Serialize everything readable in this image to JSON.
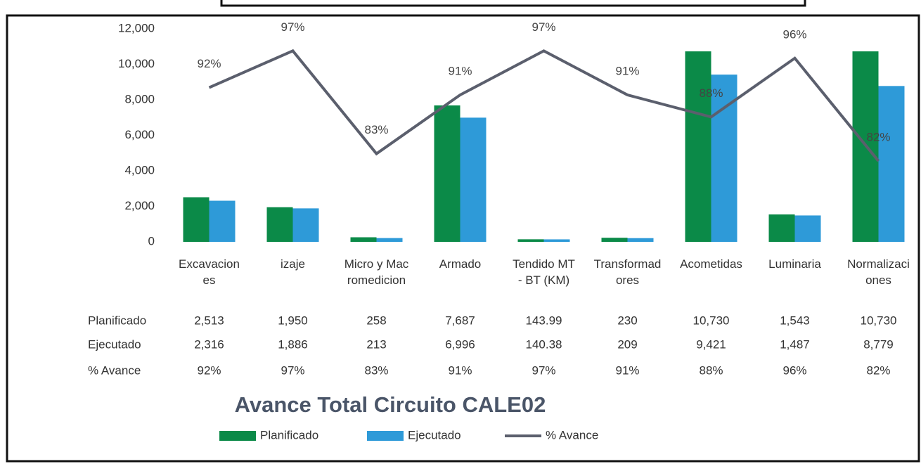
{
  "chart_data": {
    "type": "bar",
    "title": "Avance Total Circuito CALE02",
    "categories": [
      "Excavaciones",
      "izaje",
      "Micro y Macromedicion",
      "Armado",
      "Tendido MT - BT (KM)",
      "Transformadores",
      "Acometidas",
      "Luminaria",
      "Normalizaciones"
    ],
    "series": [
      {
        "name": "Planificado",
        "color": "#0b8a48",
        "values": [
          2513,
          1950,
          258,
          7687,
          143.99,
          230,
          10730,
          1543,
          10730
        ],
        "value_labels": [
          "2,513",
          "1,950",
          "258",
          "7,687",
          "143.99",
          "230",
          "10,730",
          "1,543",
          "10,730"
        ]
      },
      {
        "name": "Ejecutado",
        "color": "#2e9ad8",
        "values": [
          2316,
          1886,
          213,
          6996,
          140.38,
          209,
          9421,
          1487,
          8779
        ],
        "value_labels": [
          "2,316",
          "1,886",
          "213",
          "6,996",
          "140.38",
          "209",
          "9,421",
          "1,487",
          "8,779"
        ]
      },
      {
        "name": "% Avance",
        "color": "#5b5f6d",
        "type": "line",
        "axis": "y2",
        "values": [
          92,
          97,
          83,
          91,
          97,
          91,
          88,
          96,
          82
        ],
        "value_labels": [
          "92%",
          "97%",
          "83%",
          "91%",
          "97%",
          "91%",
          "88%",
          "96%",
          "82%"
        ]
      }
    ],
    "ylim": [
      0,
      12000
    ],
    "yticks": [
      0,
      {
        "value": 2000,
        "label": "2,000"
      },
      {
        "value": 4000,
        "label": "4,000"
      },
      {
        "value": 6000,
        "label": "6,000"
      },
      {
        "value": 8000,
        "label": "8,000"
      },
      {
        "value": 10000,
        "label": "10,000"
      },
      {
        "value": 12000,
        "label": "12,000"
      }
    ],
    "y2lim": [
      71,
      100
    ],
    "grid": false,
    "legend": "bottom"
  }
}
